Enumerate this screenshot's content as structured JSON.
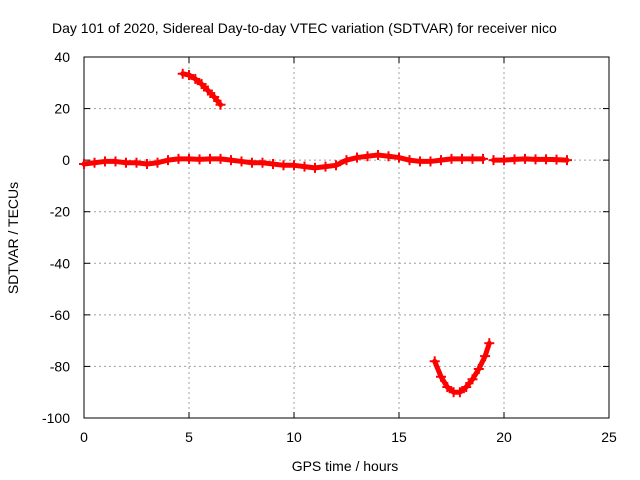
{
  "chart_data": {
    "type": "scatter",
    "title": "Day 101 of 2020, Sidereal Day-to-day VTEC variation (SDTVAR) for receiver nico",
    "xlabel": "GPS time / hours",
    "ylabel": "SDTVAR / TECUs",
    "xlim": [
      0,
      25
    ],
    "ylim": [
      -100,
      40
    ],
    "xticks": [
      0,
      5,
      10,
      15,
      20,
      25
    ],
    "yticks": [
      -100,
      -80,
      -60,
      -40,
      -20,
      0,
      20,
      40
    ],
    "xtick_labels": [
      "0",
      "5",
      "10",
      "15",
      "20",
      "25"
    ],
    "ytick_labels": [
      "-100",
      "-80",
      "-60",
      "-40",
      "-20",
      "0",
      "20",
      "40"
    ],
    "grid": true,
    "marker": "plus",
    "color": "#ff0000",
    "series": [
      {
        "name": "main-trace",
        "x": [
          0.0,
          0.5,
          1.0,
          1.5,
          2.0,
          2.5,
          3.0,
          3.5,
          4.0,
          4.5,
          5.0,
          5.5,
          6.0,
          6.5,
          7.0,
          7.5,
          8.0,
          8.5,
          9.0,
          9.5,
          10.0,
          10.5,
          11.0,
          11.5,
          12.0,
          12.5,
          13.0,
          13.5,
          14.0,
          14.5,
          15.0,
          15.5,
          16.0,
          16.5,
          17.0,
          17.5,
          18.0,
          18.5,
          19.0
        ],
        "y": [
          -1.5,
          -1.0,
          -0.5,
          -0.5,
          -1.0,
          -1.0,
          -1.5,
          -1.0,
          0.0,
          0.5,
          0.5,
          0.3,
          0.5,
          0.5,
          0.0,
          -0.5,
          -1.0,
          -1.0,
          -1.5,
          -2.0,
          -2.0,
          -2.5,
          -3.0,
          -2.5,
          -2.0,
          0.0,
          1.0,
          1.5,
          2.0,
          1.5,
          1.0,
          0.0,
          -0.5,
          -0.5,
          0.0,
          0.5,
          0.5,
          0.5,
          0.5
        ]
      },
      {
        "name": "late-trace",
        "x": [
          19.5,
          20.0,
          20.5,
          21.0,
          21.5,
          22.0,
          22.5,
          23.0
        ],
        "y": [
          0.0,
          0.0,
          0.3,
          0.5,
          0.3,
          0.3,
          0.2,
          0.0
        ]
      },
      {
        "name": "upper-arc",
        "x": [
          4.7,
          5.0,
          5.3,
          5.6,
          5.9,
          6.2,
          6.5
        ],
        "y": [
          33.5,
          33.0,
          31.5,
          29.5,
          27.0,
          24.5,
          21.5
        ]
      },
      {
        "name": "lower-arc",
        "x": [
          16.7,
          17.0,
          17.3,
          17.6,
          17.9,
          18.2,
          18.5,
          18.8,
          19.1,
          19.3
        ],
        "y": [
          -78,
          -84,
          -88,
          -90,
          -90,
          -88,
          -85,
          -81,
          -76,
          -71
        ]
      }
    ]
  }
}
